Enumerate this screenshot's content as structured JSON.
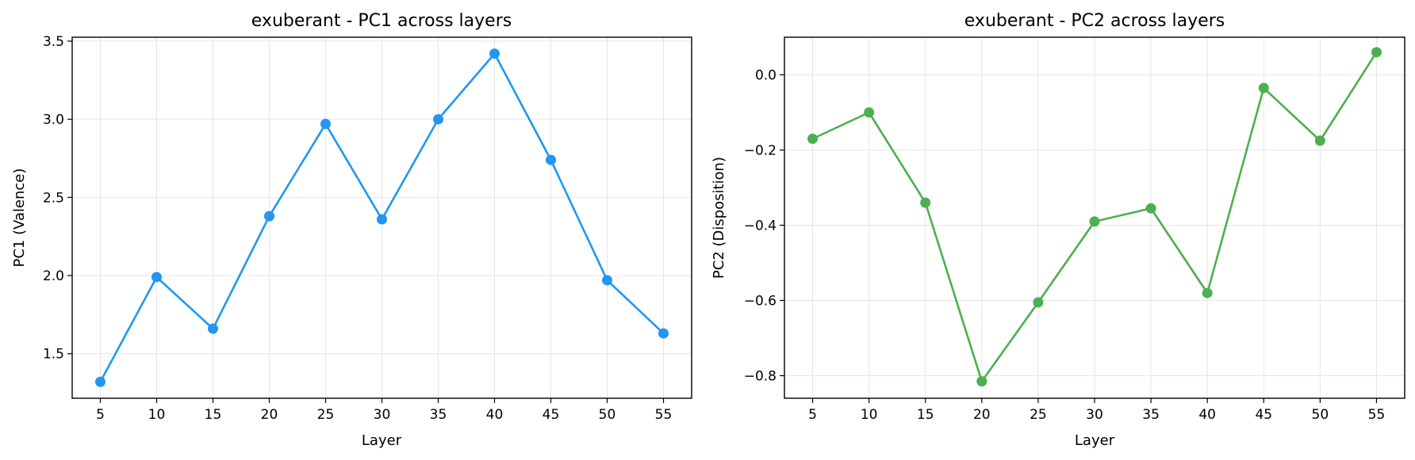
{
  "chart_data": [
    {
      "type": "line",
      "title": "exuberant - PC1 across layers",
      "xlabel": "Layer",
      "ylabel": "PC1 (Valence)",
      "x": [
        5,
        10,
        15,
        20,
        25,
        30,
        35,
        40,
        45,
        50,
        55
      ],
      "series": [
        {
          "values": [
            1.32,
            1.99,
            1.66,
            2.38,
            2.97,
            2.36,
            3.0,
            3.42,
            2.74,
            1.97,
            1.63
          ],
          "color": "#2196F3"
        }
      ],
      "xticks": [
        "5",
        "10",
        "15",
        "20",
        "25",
        "30",
        "35",
        "40",
        "45",
        "50",
        "55"
      ],
      "yticks": [
        "1.5",
        "2.0",
        "2.5",
        "3.0",
        "3.5"
      ],
      "xlim": [
        2.5,
        57.5
      ],
      "ylim": [
        1.215,
        3.525
      ],
      "grid": true,
      "marker": "circle"
    },
    {
      "type": "line",
      "title": "exuberant - PC2 across layers",
      "xlabel": "Layer",
      "ylabel": "PC2 (Disposition)",
      "x": [
        5,
        10,
        15,
        20,
        25,
        30,
        35,
        40,
        45,
        50,
        55
      ],
      "series": [
        {
          "values": [
            -0.17,
            -0.1,
            -0.34,
            -0.815,
            -0.605,
            -0.39,
            -0.355,
            -0.58,
            -0.035,
            -0.175,
            0.06
          ],
          "color": "#4CAF50"
        }
      ],
      "xticks": [
        "5",
        "10",
        "15",
        "20",
        "25",
        "30",
        "35",
        "40",
        "45",
        "50",
        "55"
      ],
      "yticks": [
        "0.0",
        "−0.2",
        "−0.4",
        "−0.6",
        "−0.8"
      ],
      "ytick_values": [
        0.0,
        -0.2,
        -0.4,
        -0.6,
        -0.8
      ],
      "xlim": [
        2.5,
        57.5
      ],
      "ylim": [
        -0.86,
        0.1
      ],
      "grid": true,
      "marker": "circle"
    }
  ]
}
